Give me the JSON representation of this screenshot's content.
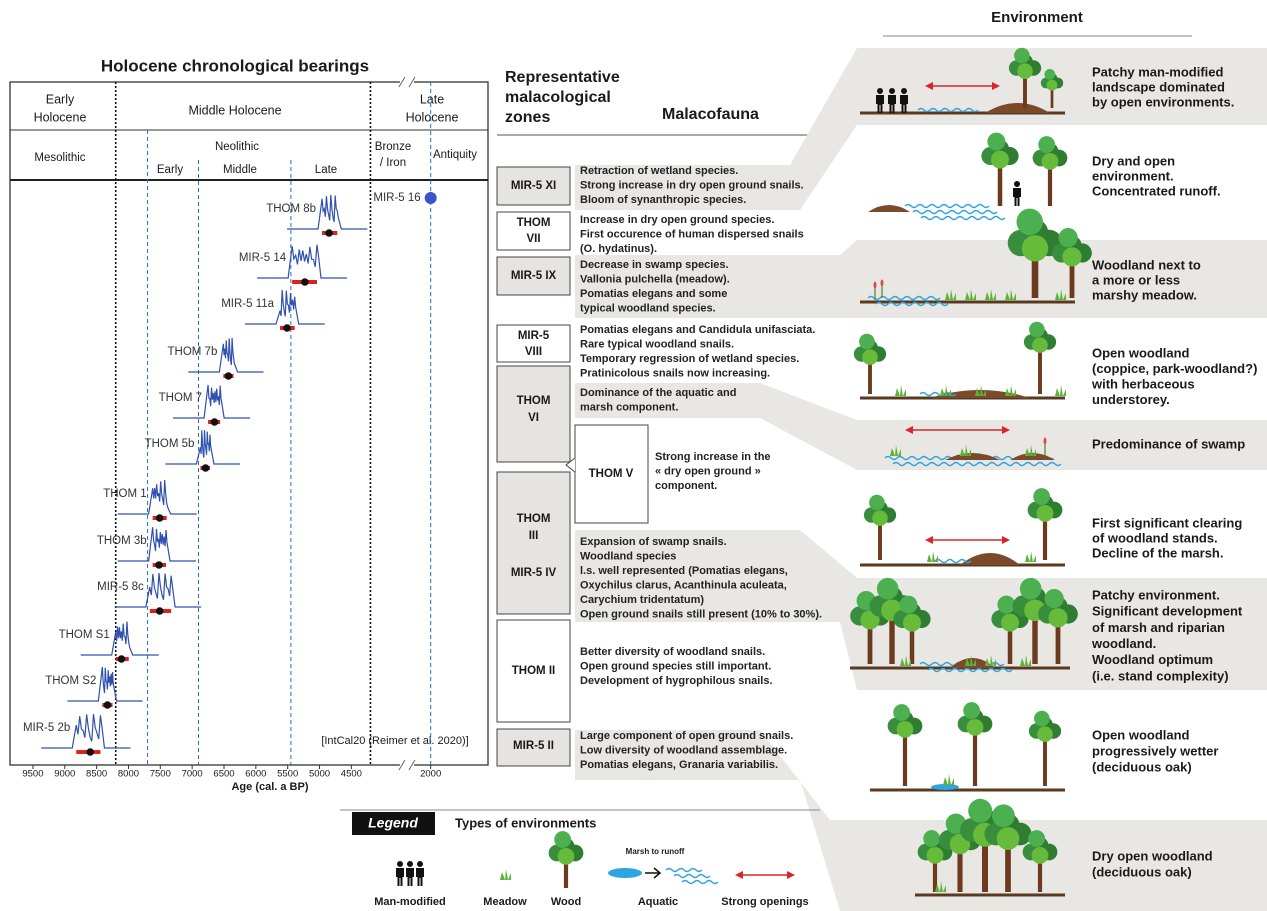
{
  "chronology": {
    "title": "Holocene chronological bearings",
    "epochs": [
      {
        "lines": [
          "Early",
          "Holocene"
        ]
      },
      {
        "lines": [
          "Middle  Holocene"
        ]
      },
      {
        "lines": [
          "Late",
          "Holocene"
        ]
      }
    ],
    "cultures": [
      {
        "lines": [
          "Mesolithic"
        ]
      },
      {
        "lines": [
          "Neolithic"
        ]
      },
      {
        "lines": [
          "Early"
        ]
      },
      {
        "lines": [
          "Middle"
        ]
      },
      {
        "lines": [
          "Late"
        ]
      },
      {
        "lines": [
          "Bronze",
          "/ Iron"
        ]
      },
      {
        "lines": [
          "Antiquity"
        ]
      }
    ],
    "boundaries": [
      {
        "value": 8200,
        "color": "#111111"
      },
      {
        "value": 7700,
        "color": "#2a6fb5"
      },
      {
        "value": 6900,
        "color": "#2a6fb5"
      },
      {
        "value": 5450,
        "color": "#2a6fb5"
      },
      {
        "value": 4200,
        "color": "#111111"
      },
      {
        "value": 2000,
        "color": "#2a6fb5"
      }
    ],
    "xlabel": "Age (cal. a BP)",
    "xlim": [
      9860,
      1100
    ],
    "xbreak": [
      3800,
      2200
    ],
    "xticks": [
      9500,
      9000,
      8500,
      8000,
      7500,
      7000,
      6500,
      6000,
      5500,
      5000,
      4500,
      2000
    ],
    "samples": [
      {
        "name": "MIR-5 16",
        "age": 2000
      },
      {
        "name": "THOM 8b",
        "age": 4850,
        "range": [
          4960,
          4720
        ]
      },
      {
        "name": "MIR-5 14",
        "age": 5230,
        "range": [
          5430,
          5040
        ]
      },
      {
        "name": "MIR-5 11a",
        "age": 5510,
        "range": [
          5620,
          5390
        ]
      },
      {
        "name": "THOM 7b",
        "age": 6430,
        "range": [
          6510,
          6350
        ]
      },
      {
        "name": "THOM 7",
        "age": 6650,
        "range": [
          6750,
          6560
        ]
      },
      {
        "name": "THOM 5b",
        "age": 6790,
        "range": [
          6870,
          6720
        ]
      },
      {
        "name": "THOM 1",
        "age": 7510,
        "range": [
          7620,
          7400
        ]
      },
      {
        "name": "THOM 3b",
        "age": 7520,
        "range": [
          7620,
          7410
        ]
      },
      {
        "name": "MIR-5 8c",
        "age": 7510,
        "range": [
          7665,
          7330
        ]
      },
      {
        "name": "THOM S1",
        "age": 8110,
        "range": [
          8200,
          7995
        ]
      },
      {
        "name": "THOM S2",
        "age": 8330,
        "range": [
          8410,
          8250
        ]
      },
      {
        "name": "MIR-5 2b",
        "age": 8600,
        "range": [
          8820,
          8440
        ]
      }
    ],
    "note": "[IntCal20 (Reimer et al. 2020)]"
  },
  "zones_heading": [
    "Representative",
    "malacological",
    "zones"
  ],
  "malacofauna_heading": "Malacofauna",
  "zones": [
    {
      "label": [
        "MIR-5 XI"
      ],
      "text": [
        "Retraction of wetland species.",
        "Strong increase in dry open ground snails.",
        "Bloom of synanthropic species."
      ]
    },
    {
      "label": [
        "THOM",
        "VII"
      ],
      "text": [
        "Increase in dry open ground species.",
        "First occurence of human dispersed snails",
        " (O. hydatinus)."
      ]
    },
    {
      "label": [
        "MIR-5 IX"
      ],
      "text": [
        "Decrease in swamp species.",
        "Vallonia pulchella (meadow).",
        "Pomatias elegans and some",
        "typical woodland species."
      ]
    },
    {
      "label": [
        "MIR-5",
        "VIII"
      ],
      "text": [
        "Pomatias elegans and Candidula unifasciata.",
        "Rare typical woodland snails.",
        "Temporary regression of wetland species.",
        "Pratinicolous snails now increasing."
      ]
    },
    {
      "label": [
        "THOM",
        "VI"
      ],
      "text": [
        "Dominance of the aquatic and",
        " marsh component."
      ]
    },
    {
      "label": [
        "THOM V"
      ],
      "text": [
        "Strong increase in the",
        "« dry open ground »",
        "component."
      ]
    },
    {
      "label": [
        "THOM",
        "III",
        "MIR-5 IV"
      ],
      "text": [
        "Expansion of swamp snails.",
        "Woodland species",
        "l.s. well represented (Pomatias elegans,",
        "Oxychilus clarus, Acanthinula aculeata,",
        "Carychium tridentatum)",
        "Open ground snails still present (10% to 30%)."
      ]
    },
    {
      "label": [
        "THOM II"
      ],
      "text": [
        "Better diversity of woodland snails.",
        "Open ground species still important.",
        "Development of hygrophilous snails."
      ]
    },
    {
      "label": [
        "MIR-5  II"
      ],
      "text": [
        "Large component of open ground snails.",
        "Low diversity of woodland assemblage.",
        "Pomatias elegans, Granaria variabilis."
      ]
    }
  ],
  "environment_heading": "Environment",
  "environments": [
    {
      "lines": [
        "Patchy man-modified",
        "landscape dominated",
        "by open environments."
      ]
    },
    {
      "lines": [
        "Dry and open",
        "environment.",
        "Concentrated runoff."
      ]
    },
    {
      "lines": [
        "Woodland next to",
        "a more or less",
        "marshy meadow."
      ]
    },
    {
      "lines": [
        "Open woodland",
        "(coppice, park-woodland?)",
        "with herbaceous",
        " understorey."
      ]
    },
    {
      "lines": [
        "Predominance of swamp"
      ]
    },
    {
      "lines": [
        "First significant clearing",
        "of woodland stands.",
        "Decline of the marsh."
      ]
    },
    {
      "lines": [
        "Patchy environment.",
        "Significant development",
        "of marsh and riparian",
        "woodland.",
        "Woodland optimum",
        "(i.e. stand complexity)"
      ]
    },
    {
      "lines": [
        "Open woodland",
        "progressively wetter",
        "(deciduous oak)"
      ]
    },
    {
      "lines": [
        "Dry open woodland",
        "(deciduous oak)"
      ]
    }
  ],
  "legend": {
    "title": "Legend",
    "subtitle": "Types of environments",
    "items": [
      "Man-modified",
      "Meadow",
      "Wood",
      "Aquatic",
      "Strong openings"
    ],
    "aquatic_note": "Marsh to runoff"
  }
}
